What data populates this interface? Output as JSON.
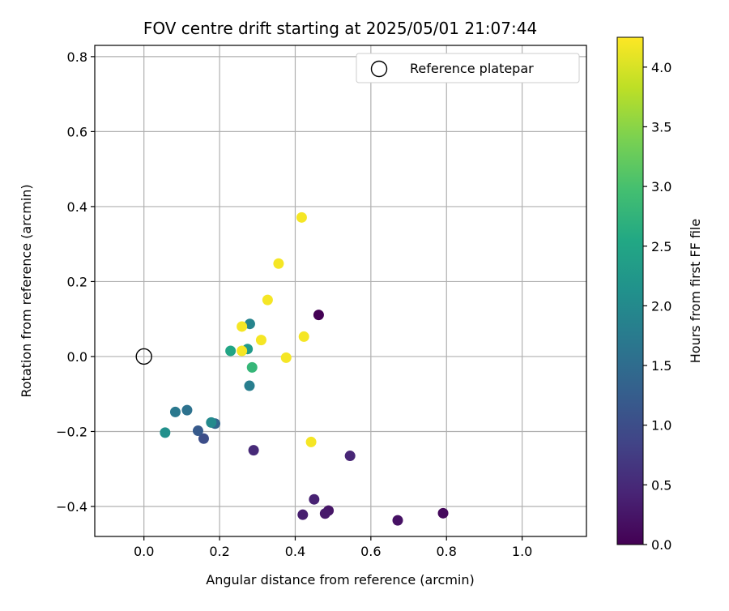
{
  "chart_data": {
    "type": "scatter",
    "title": "FOV centre drift starting at 2025/05/01 21:07:44",
    "xlabel": "Angular distance from reference (arcmin)",
    "ylabel": "Rotation from reference (arcmin)",
    "xlim": [
      -0.13,
      1.17
    ],
    "ylim": [
      -0.48,
      0.83
    ],
    "xticks": [
      0.0,
      0.2,
      0.4,
      0.6,
      0.8,
      1.0
    ],
    "xtick_labels": [
      "0.0",
      "0.2",
      "0.4",
      "0.6",
      "0.8",
      "1.0"
    ],
    "yticks": [
      -0.4,
      -0.2,
      0.0,
      0.2,
      0.4,
      0.6,
      0.8
    ],
    "ytick_labels": [
      "−0.4",
      "−0.2",
      "0.0",
      "0.2",
      "0.4",
      "0.6",
      "0.8"
    ],
    "grid": true,
    "legend": {
      "position": "top-right",
      "entries": [
        {
          "label": "Reference platepar",
          "marker": "hollow-circle",
          "color": "#000000"
        }
      ]
    },
    "reference_point": {
      "x": 0.0,
      "y": 0.0
    },
    "colorbar": {
      "label": "Hours from first FF file",
      "colormap": "viridis",
      "range": [
        0.0,
        4.25
      ],
      "ticks": [
        0.0,
        0.5,
        1.0,
        1.5,
        2.0,
        2.5,
        3.0,
        3.5,
        4.0
      ],
      "tick_labels": [
        "0.0",
        "0.5",
        "1.0",
        "1.5",
        "2.0",
        "2.5",
        "3.0",
        "3.5",
        "4.0"
      ]
    },
    "points": [
      {
        "x": 0.462,
        "y": 0.111,
        "hours": 0.0
      },
      {
        "x": 0.791,
        "y": -0.418,
        "hours": 0.1
      },
      {
        "x": 0.671,
        "y": -0.437,
        "hours": 0.2
      },
      {
        "x": 0.488,
        "y": -0.411,
        "hours": 0.25
      },
      {
        "x": 0.479,
        "y": -0.419,
        "hours": 0.3
      },
      {
        "x": 0.42,
        "y": -0.422,
        "hours": 0.35
      },
      {
        "x": 0.45,
        "y": -0.381,
        "hours": 0.4
      },
      {
        "x": 0.545,
        "y": -0.265,
        "hours": 0.45
      },
      {
        "x": 0.29,
        "y": -0.25,
        "hours": 0.5
      },
      {
        "x": 0.158,
        "y": -0.219,
        "hours": 1.0
      },
      {
        "x": 0.143,
        "y": -0.198,
        "hours": 1.2
      },
      {
        "x": 0.188,
        "y": -0.179,
        "hours": 1.4
      },
      {
        "x": 0.114,
        "y": -0.143,
        "hours": 1.6
      },
      {
        "x": 0.083,
        "y": -0.148,
        "hours": 1.7
      },
      {
        "x": 0.279,
        "y": -0.078,
        "hours": 1.8
      },
      {
        "x": 0.28,
        "y": 0.087,
        "hours": 1.9
      },
      {
        "x": 0.178,
        "y": -0.176,
        "hours": 2.0
      },
      {
        "x": 0.056,
        "y": -0.203,
        "hours": 2.1
      },
      {
        "x": 0.274,
        "y": 0.02,
        "hours": 2.3
      },
      {
        "x": 0.229,
        "y": 0.015,
        "hours": 2.5
      },
      {
        "x": 0.286,
        "y": -0.029,
        "hours": 2.8
      },
      {
        "x": 0.442,
        "y": -0.228,
        "hours": 4.2
      },
      {
        "x": 0.376,
        "y": -0.003,
        "hours": 4.2
      },
      {
        "x": 0.259,
        "y": 0.015,
        "hours": 4.2
      },
      {
        "x": 0.31,
        "y": 0.044,
        "hours": 4.2
      },
      {
        "x": 0.259,
        "y": 0.08,
        "hours": 4.2
      },
      {
        "x": 0.423,
        "y": 0.053,
        "hours": 4.2
      },
      {
        "x": 0.327,
        "y": 0.151,
        "hours": 4.2
      },
      {
        "x": 0.356,
        "y": 0.248,
        "hours": 4.2
      },
      {
        "x": 0.417,
        "y": 0.371,
        "hours": 4.2
      }
    ]
  }
}
